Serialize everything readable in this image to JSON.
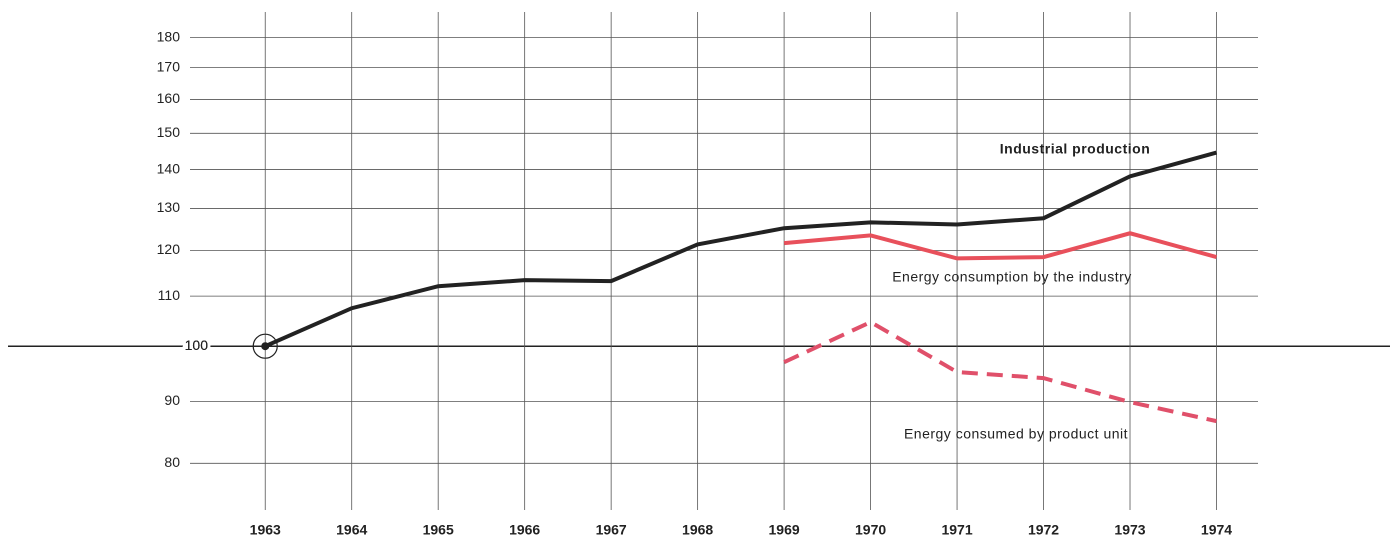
{
  "chart_data": {
    "type": "line",
    "x": [
      1963,
      1964,
      1965,
      1966,
      1967,
      1968,
      1969,
      1970,
      1971,
      1972,
      1973,
      1974
    ],
    "series": [
      {
        "name": "Industrial production",
        "color": "#222222",
        "dash": false,
        "values": [
          100,
          107.5,
          112.1,
          113.4,
          113.2,
          121.4,
          125.2,
          126.6,
          126.1,
          127.6,
          138.2,
          144.6
        ]
      },
      {
        "name": "Energy consumption by the industry",
        "color": "#e8505b",
        "dash": false,
        "values": [
          null,
          null,
          null,
          null,
          null,
          null,
          121.7,
          123.5,
          118.2,
          118.5,
          124,
          118.5
        ]
      },
      {
        "name": "Energy consumed by product unit",
        "color": "#e0506a",
        "dash": true,
        "values": [
          null,
          null,
          null,
          null,
          null,
          null,
          97,
          104.7,
          95.2,
          94.1,
          89.9,
          86.7
        ]
      }
    ],
    "xlim": [
      1962.13,
      1974.48
    ],
    "xticks": [
      1963,
      1964,
      1965,
      1966,
      1967,
      1968,
      1969,
      1970,
      1971,
      1972,
      1973,
      1974
    ],
    "ylim": [
      77.5,
      189
    ],
    "yticks": [
      80,
      90,
      100,
      110,
      120,
      130,
      140,
      150,
      160,
      170,
      180
    ],
    "log_y": true,
    "grid": true
  }
}
